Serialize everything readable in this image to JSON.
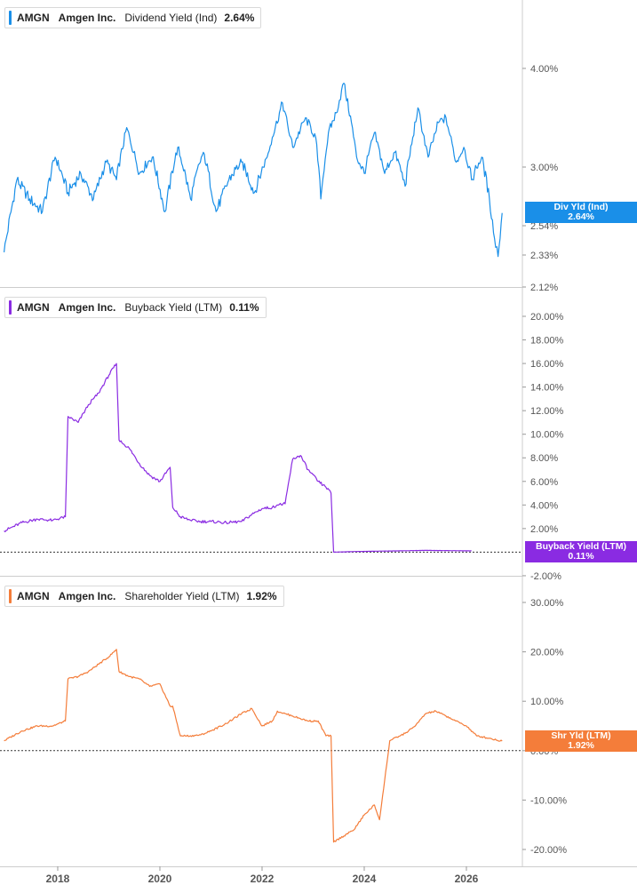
{
  "legends": [
    {
      "ticker": "AMGN",
      "company": "Amgen Inc.",
      "metric": "Dividend Yield (Ind)",
      "value": "2.64%"
    },
    {
      "ticker": "AMGN",
      "company": "Amgen Inc.",
      "metric": "Buyback Yield (LTM)",
      "value": "0.11%"
    },
    {
      "ticker": "AMGN",
      "company": "Amgen Inc.",
      "metric": "Shareholder Yield (LTM)",
      "value": "1.92%"
    }
  ],
  "flags": [
    {
      "label": "Div Yld (Ind)",
      "value": "2.64%"
    },
    {
      "label": "Buyback Yield (LTM)",
      "value": "0.11%"
    },
    {
      "label": "Shr Yld (LTM)",
      "value": "1.92%"
    }
  ],
  "colors": {
    "dividend": "#1a8fe8",
    "buyback": "#8a2be2",
    "shareholder": "#f47d3a",
    "grid": "#cccccc",
    "axis_text": "#555555"
  },
  "x_ticks": [
    "2018",
    "2020",
    "2022",
    "2024",
    "2026"
  ],
  "chart_data": [
    {
      "type": "line",
      "series": [
        {
          "name": "Dividend Yield (Ind)",
          "x": [
            2016.95,
            2017.2,
            2017.45,
            2017.7,
            2017.95,
            2018.2,
            2018.45,
            2018.7,
            2018.95,
            2019.15,
            2019.35,
            2019.6,
            2019.85,
            2020.1,
            2020.35,
            2020.6,
            2020.85,
            2021.1,
            2021.35,
            2021.6,
            2021.85,
            2022.1,
            2022.2,
            2022.4,
            2022.6,
            2022.85,
            2023.05,
            2023.15,
            2023.3,
            2023.45,
            2023.6,
            2023.75,
            2023.85,
            2024.0,
            2024.2,
            2024.4,
            2024.6,
            2024.8,
            2024.95,
            2025.05,
            2025.25,
            2025.45,
            2025.6,
            2025.8,
            2025.95,
            2026.1,
            2026.3,
            2026.45,
            2026.55,
            2026.62,
            2026.7
          ],
          "values": [
            2.35,
            2.9,
            2.75,
            2.65,
            3.1,
            2.8,
            2.95,
            2.75,
            3.05,
            2.9,
            3.4,
            2.95,
            3.1,
            2.65,
            3.2,
            2.75,
            3.15,
            2.65,
            2.9,
            3.05,
            2.8,
            3.1,
            3.3,
            3.65,
            3.2,
            3.5,
            3.3,
            2.75,
            3.35,
            3.55,
            3.85,
            3.45,
            3.1,
            2.95,
            3.35,
            2.95,
            3.15,
            2.85,
            3.3,
            3.6,
            3.1,
            3.45,
            3.5,
            3.05,
            3.2,
            2.9,
            3.1,
            2.75,
            2.45,
            2.32,
            2.64
          ]
        }
      ],
      "y_ticks": [
        "4.00%",
        "3.00%",
        "2.54%",
        "2.33%",
        "2.12%"
      ],
      "ylim": [
        2.12,
        4.5
      ]
    },
    {
      "type": "line",
      "series": [
        {
          "name": "Buyback Yield (LTM)",
          "x": [
            2016.95,
            2017.3,
            2017.6,
            2017.9,
            2018.15,
            2018.2,
            2018.4,
            2018.6,
            2018.8,
            2019.0,
            2019.15,
            2019.2,
            2019.4,
            2019.6,
            2019.8,
            2020.0,
            2020.2,
            2020.25,
            2020.4,
            2020.6,
            2020.8,
            2021.0,
            2021.3,
            2021.6,
            2021.8,
            2022.0,
            2022.2,
            2022.3,
            2022.45,
            2022.6,
            2022.75,
            2022.9,
            2023.1,
            2023.25,
            2023.35,
            2023.4,
            2023.8,
            2024.5,
            2025.2,
            2025.9,
            2026.1
          ],
          "values": [
            1.8,
            2.5,
            2.8,
            2.7,
            3.0,
            11.5,
            11.0,
            12.5,
            13.5,
            15.0,
            16.0,
            9.5,
            8.8,
            7.5,
            6.5,
            6.0,
            7.2,
            3.8,
            3.0,
            2.7,
            2.6,
            2.6,
            2.5,
            2.6,
            3.2,
            3.7,
            3.8,
            4.0,
            4.1,
            7.9,
            8.2,
            7.0,
            6.0,
            5.5,
            5.0,
            0.0,
            0.05,
            0.1,
            0.15,
            0.12,
            0.11
          ]
        }
      ],
      "y_ticks": [
        "20.00%",
        "18.00%",
        "16.00%",
        "14.00%",
        "12.00%",
        "10.00%",
        "8.00%",
        "6.00%",
        "4.00%",
        "2.00%",
        "-2.00%"
      ],
      "ylim": [
        -2,
        22
      ]
    },
    {
      "type": "line",
      "series": [
        {
          "name": "Shareholder Yield (LTM)",
          "x": [
            2016.95,
            2017.3,
            2017.6,
            2017.9,
            2018.15,
            2018.2,
            2018.4,
            2018.6,
            2018.8,
            2019.0,
            2019.15,
            2019.2,
            2019.4,
            2019.6,
            2019.8,
            2020.0,
            2020.2,
            2020.25,
            2020.4,
            2020.6,
            2020.8,
            2021.0,
            2021.3,
            2021.6,
            2021.8,
            2022.0,
            2022.2,
            2022.3,
            2022.45,
            2022.6,
            2022.75,
            2022.9,
            2023.1,
            2023.25,
            2023.35,
            2023.4,
            2023.8,
            2024.0,
            2024.2,
            2024.3,
            2024.5,
            2024.8,
            2025.0,
            2025.2,
            2025.4,
            2025.6,
            2025.8,
            2026.0,
            2026.2,
            2026.45,
            2026.7
          ],
          "values": [
            2.0,
            4.0,
            5.0,
            5.0,
            6.0,
            14.5,
            15.0,
            16.0,
            17.5,
            19.0,
            20.5,
            16.0,
            15.0,
            14.5,
            13.0,
            13.5,
            9.0,
            9.0,
            3.0,
            3.0,
            3.2,
            4.0,
            5.5,
            7.5,
            8.5,
            5.0,
            6.0,
            8.0,
            7.5,
            7.0,
            6.5,
            6.0,
            6.0,
            3.0,
            3.0,
            -18.5,
            -16.0,
            -13.0,
            -11.0,
            -14.0,
            2.0,
            3.5,
            5.0,
            7.5,
            8.0,
            7.0,
            6.0,
            5.0,
            3.0,
            2.5,
            1.92
          ]
        }
      ],
      "y_ticks": [
        "30.00%",
        "20.00%",
        "10.00%",
        "0.00%",
        "-10.00%",
        "-20.00%"
      ],
      "ylim": [
        -22,
        34
      ]
    }
  ]
}
